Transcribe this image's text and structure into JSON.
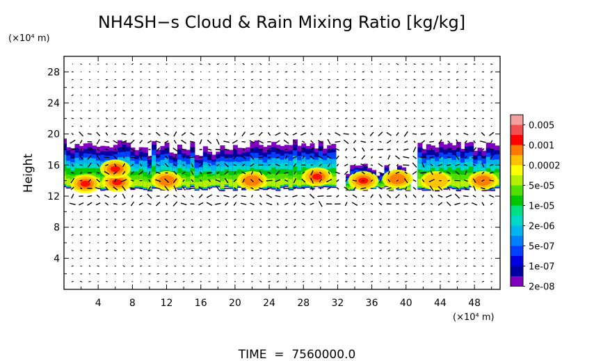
{
  "chart_data": {
    "type": "heatmap",
    "title": "NH4SH−s Cloud & Rain Mixing Ratio [kg/kg]",
    "ylabel": "Height",
    "y_unit": "(×10⁴ m)",
    "x_unit": "(×10⁴ m)",
    "xlim": [
      0,
      51
    ],
    "ylim": [
      0,
      30
    ],
    "x_ticks": [
      "4",
      "8",
      "12",
      "16",
      "20",
      "24",
      "28",
      "32",
      "36",
      "40",
      "44",
      "48"
    ],
    "y_ticks": [
      "4",
      "8",
      "12",
      "16",
      "20",
      "24",
      "28"
    ],
    "footer": "TIME  =  7560000.0",
    "colorbar": {
      "labels": [
        "0.005",
        "0.001",
        "0.0002",
        "5e-05",
        "1e-05",
        "2e-06",
        "5e-07",
        "1e-07",
        "2e-08"
      ],
      "colors": [
        "#f4a0a0",
        "#f05050",
        "#ff0000",
        "#ff7800",
        "#ffc000",
        "#ffff00",
        "#b4f000",
        "#50e000",
        "#00c800",
        "#00e080",
        "#00d8c8",
        "#00b4f0",
        "#0080ff",
        "#0040ff",
        "#0000e0",
        "#0000a0",
        "#8000c0"
      ]
    },
    "cloud_band": {
      "outline_color": "#8000c0",
      "approx_y_range": [
        12.5,
        19.5
      ],
      "cells": [
        {
          "x": 2.5,
          "y": 13.6,
          "level": 4
        },
        {
          "x": 6.2,
          "y": 13.8,
          "level": 3
        },
        {
          "x": 6.0,
          "y": 15.5,
          "level": 4
        },
        {
          "x": 12.0,
          "y": 14.0,
          "level": 5
        },
        {
          "x": 22.0,
          "y": 14.0,
          "level": 5
        },
        {
          "x": 29.6,
          "y": 14.5,
          "level": 3
        },
        {
          "x": 35.0,
          "y": 14.0,
          "level": 4
        },
        {
          "x": 39.0,
          "y": 14.2,
          "level": 5
        },
        {
          "x": 43.5,
          "y": 14.0,
          "level": 6
        },
        {
          "x": 49.0,
          "y": 14.0,
          "level": 5
        }
      ]
    }
  }
}
